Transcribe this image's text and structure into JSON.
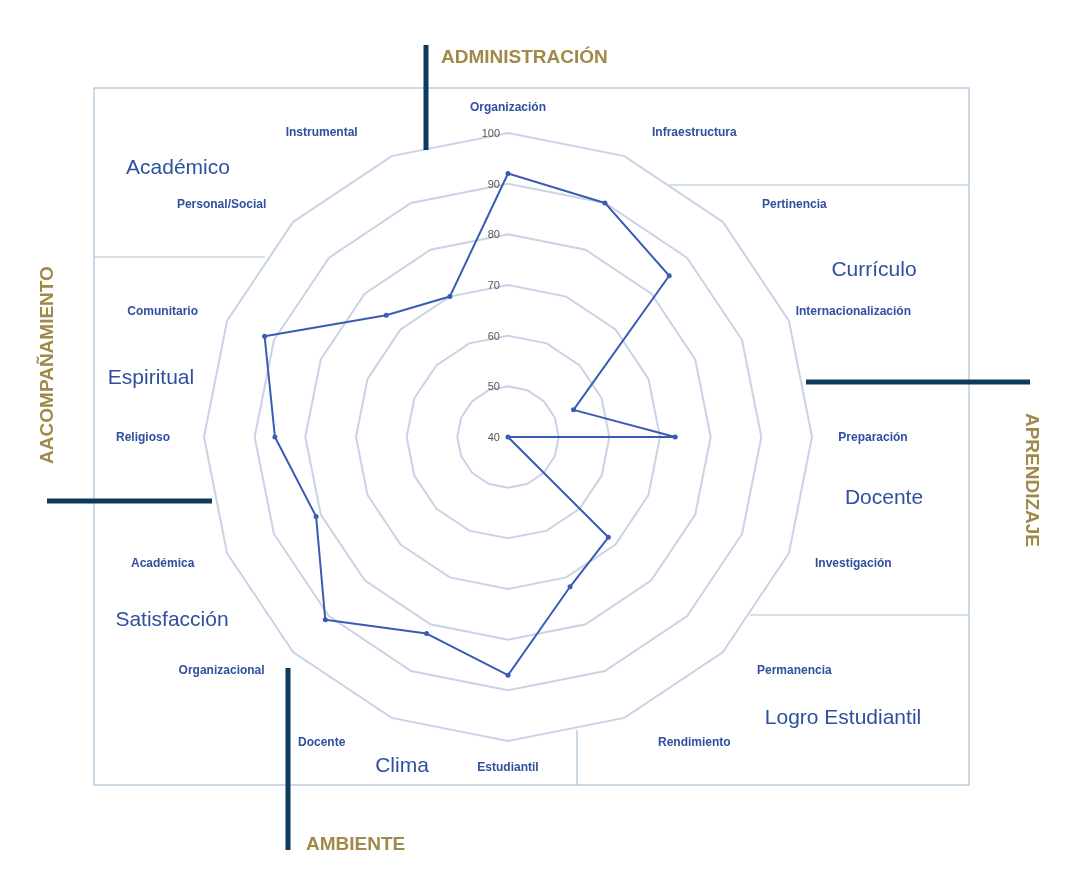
{
  "chart_data": {
    "type": "radar",
    "categories": [
      "Organización",
      "Infraestructura",
      "Pertinencia",
      "Internacionalización",
      "Preparación",
      "Investigación",
      "Permanencia",
      "Rendimiento",
      "Estudiantil",
      "Docente",
      "Organizacional",
      "Académica",
      "Religioso",
      "Comunitario",
      "Personal/Social",
      "Instrumental"
    ],
    "series": [
      {
        "color": "#3a5bb4",
        "values": [
          92,
          90,
          85,
          54,
          73,
          40,
          68,
          72,
          87,
          82,
          91,
          81,
          86,
          92,
          74,
          70
        ]
      }
    ],
    "ylim": [
      40,
      100
    ],
    "yticks": [
      40,
      50,
      60,
      70,
      80,
      90,
      100
    ],
    "grid": true,
    "marker": "circle",
    "annotations": [
      "Académico",
      "Currículo",
      "Docente",
      "Logro Estudiantil",
      "Clima",
      "Satisfacción",
      "Espiritual",
      "ADMINISTRACIÓN",
      "APRENDIZAJE",
      "AMBIENTE",
      "AACOMPAÑAMIENTO"
    ]
  }
}
